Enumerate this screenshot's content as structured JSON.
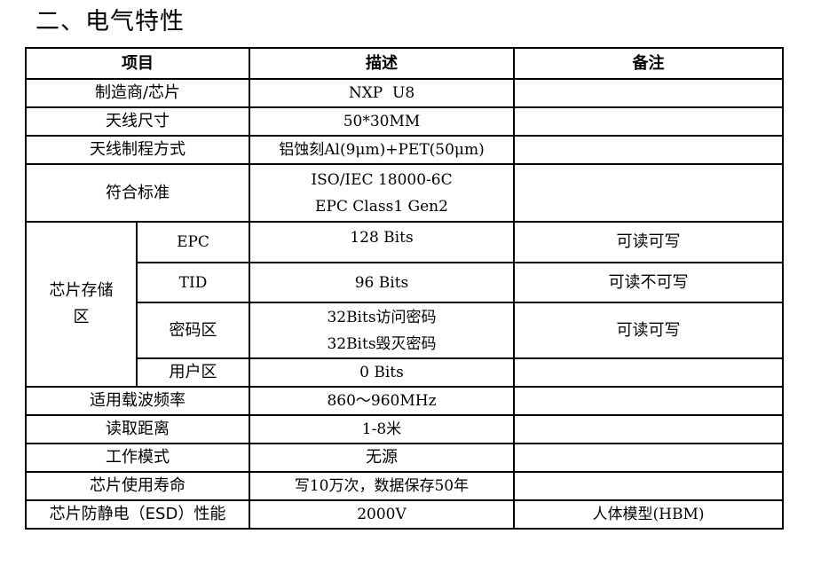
{
  "section_title": "二、电气特性",
  "table": {
    "headers": [
      "项目",
      "描述",
      "备注"
    ],
    "rows": [
      {
        "item": "制造商/芯片",
        "desc": "NXP  U8",
        "note": ""
      },
      {
        "item": "天线尺寸",
        "desc": "50*30MM",
        "note": ""
      },
      {
        "item": "天线制程方式",
        "desc": "铝蚀刻Al(9μm)+PET(50μm)",
        "note": ""
      },
      {
        "item": "符合标准",
        "desc_lines": [
          "ISO/IEC 18000-6C",
          "EPC Class1 Gen2"
        ],
        "note": ""
      }
    ],
    "memory": {
      "label_lines": [
        "芯片存储",
        "区"
      ],
      "rows": [
        {
          "sub": "EPC",
          "desc": "128 Bits",
          "note": "可读可写"
        },
        {
          "sub": "TID",
          "desc": "96 Bits",
          "note": "可读不可写"
        },
        {
          "sub": "密码区",
          "desc_lines": [
            "32Bits访问密码",
            "32Bits毁灭密码"
          ],
          "note": "可读可写"
        },
        {
          "sub": "用户区",
          "desc": "0 Bits",
          "note": ""
        }
      ]
    },
    "rows_after": [
      {
        "item": "适用载波频率",
        "desc": "860～960MHz",
        "note": ""
      },
      {
        "item": "读取距离",
        "desc": "1-8米",
        "note": ""
      },
      {
        "item": "工作模式",
        "desc": "无源",
        "note": ""
      },
      {
        "item": "芯片使用寿命",
        "desc": "写10万次，数据保存50年",
        "note": ""
      },
      {
        "item": "芯片防静电（ESD）性能",
        "desc": "2000V",
        "note": "人体模型(HBM)"
      }
    ]
  }
}
